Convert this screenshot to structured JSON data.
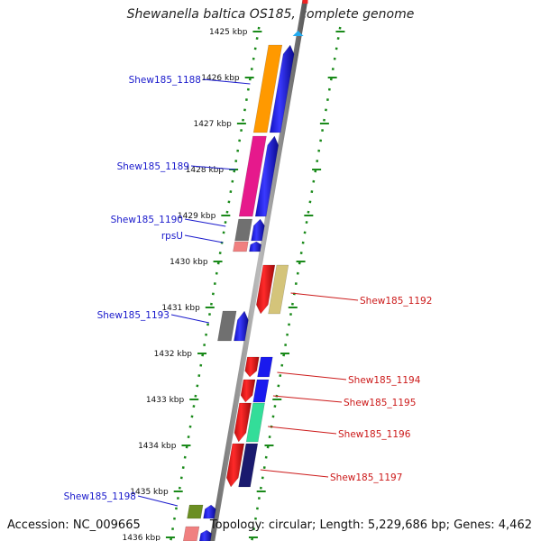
{
  "title": "Shewanella baltica OS185, complete genome",
  "footer": {
    "accession": "Accession: NC_009665",
    "summary": "Topology: circular; Length: 5,229,686 bp; Genes: 4,462"
  },
  "colors": {
    "backbone": "#8a8a8a",
    "tick": "#1a8a1a",
    "forward_label": "#1a1acc",
    "reverse_label": "#cc1a1a"
  },
  "kbp_ticks": [
    "1425 kbp",
    "1426 kbp",
    "1427 kbp",
    "1428 kbp",
    "1429 kbp",
    "1430 kbp",
    "1431 kbp",
    "1432 kbp",
    "1433 kbp",
    "1434 kbp",
    "1435 kbp",
    "1436 kbp"
  ],
  "forward_genes": [
    {
      "label": "Shew185_1188",
      "color": "#ff9900"
    },
    {
      "label": "Shew185_1189",
      "color": "#e6198c"
    },
    {
      "label": "Shew185_1190",
      "color": "#707070"
    },
    {
      "label": "rpsU",
      "color": "#f08080"
    },
    {
      "label": "Shew185_1193",
      "color": "#707070"
    },
    {
      "label": "Shew185_1198",
      "color": "#6b8e23"
    }
  ],
  "reverse_genes": [
    {
      "label": "Shew185_1192",
      "color": "#d4c47a"
    },
    {
      "label": "Shew185_1194",
      "color": "#1a1aee"
    },
    {
      "label": "Shew185_1195",
      "color": "#1a1aee"
    },
    {
      "label": "Shew185_1196",
      "color": "#33dd99"
    },
    {
      "label": "Shew185_1197",
      "color": "#1a1a6e"
    }
  ],
  "unlabeled": {
    "forward_pair_color": "#1a1aee",
    "reverse_pair_color": "#ee1a1a"
  }
}
